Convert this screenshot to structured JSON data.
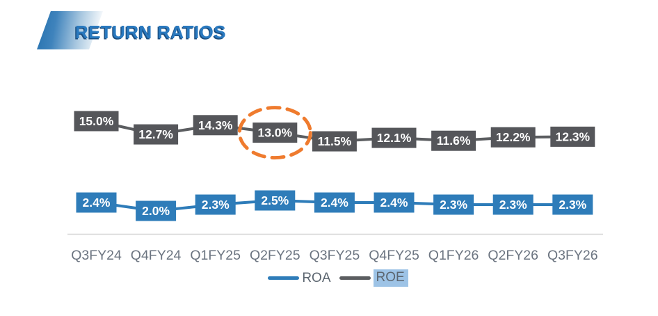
{
  "header": {
    "title": "RETURN RATIOS"
  },
  "colors": {
    "title_blue": "#2979BF",
    "title_shadow": "#1C4E7F",
    "roa_blue": "#2E7CB9",
    "roe_box_gray": "#55565A",
    "roe_line_gray": "#5B5D60",
    "axis_line_gray": "#D4D4D4",
    "tick_label_gray": "#6B7480",
    "legend_text_gray": "#5C6670",
    "legend_highlight_blue": "#9DC3E6",
    "annotation_orange": "#EF7B2E",
    "box_label_white": "#FFFFFF"
  },
  "chart_data": {
    "type": "line",
    "title": "RETURN RATIOS",
    "categories": [
      "Q3FY24",
      "Q4FY24",
      "Q1FY25",
      "Q2FY25",
      "Q3FY25",
      "Q4FY25",
      "Q1FY26",
      "Q2FY26",
      "Q3FY26"
    ],
    "series": [
      {
        "name": "ROE",
        "color": "#55565A",
        "values": [
          15.0,
          12.7,
          14.3,
          13.0,
          11.5,
          12.1,
          11.6,
          12.2,
          12.3
        ],
        "labels": [
          "15.0%",
          "12.7%",
          "14.3%",
          "13.0%",
          "11.5%",
          "12.1%",
          "11.6%",
          "12.2%",
          "12.3%"
        ]
      },
      {
        "name": "ROA",
        "color": "#2E7CB9",
        "values": [
          2.4,
          2.0,
          2.3,
          2.5,
          2.4,
          2.4,
          2.3,
          2.3,
          2.3
        ],
        "labels": [
          "2.4%",
          "2.0%",
          "2.3%",
          "2.5%",
          "2.4%",
          "2.4%",
          "2.3%",
          "2.3%",
          "2.3%"
        ]
      }
    ],
    "annotation": {
      "shape": "dashed-ellipse",
      "series": "ROE",
      "category": "Q2FY25",
      "label": "13.0%",
      "color": "#EF7B2E"
    },
    "value_format": "percent",
    "data_labels": "boxed-on-points",
    "grid": false,
    "xlabel": "",
    "ylabel": "",
    "legend_position": "bottom"
  },
  "legend": {
    "items": [
      {
        "label": "ROA",
        "color": "#2E7CB9",
        "highlighted": false
      },
      {
        "label": "ROE",
        "color": "#5B5D60",
        "highlighted": true
      }
    ]
  }
}
